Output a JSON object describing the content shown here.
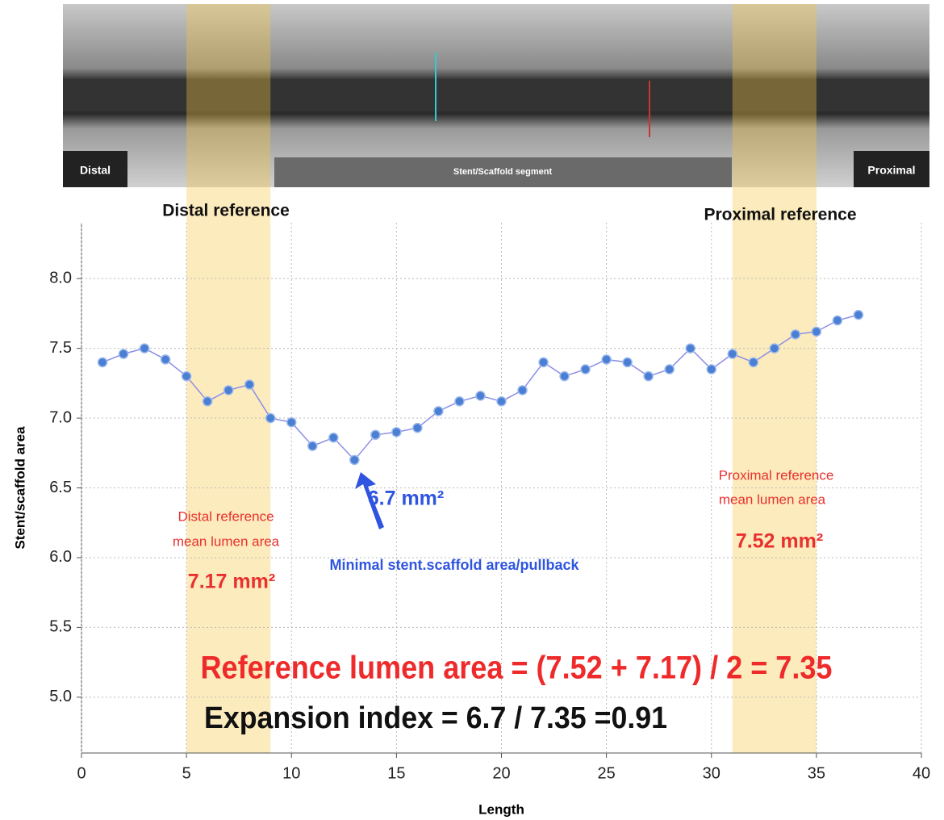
{
  "chart_data": {
    "type": "line",
    "image_labels": [
      "Distal",
      "Stent/Scaffold segment",
      "Proximal"
    ],
    "bands": [
      {
        "label": "Distal reference",
        "range": [
          5,
          9
        ]
      },
      {
        "label": "Proximal reference",
        "range": [
          31,
          35
        ]
      }
    ],
    "x": [
      1,
      2,
      3,
      4,
      5,
      6,
      7,
      8,
      9,
      10,
      11,
      12,
      13,
      14,
      15,
      16,
      17,
      18,
      19,
      20,
      21,
      22,
      23,
      24,
      25,
      26,
      27,
      28,
      29,
      30,
      31,
      32,
      33,
      34,
      35,
      36,
      37
    ],
    "series": [
      {
        "color": "#4a7fd4",
        "values": [
          7.4,
          7.46,
          7.5,
          7.42,
          7.3,
          7.12,
          7.2,
          7.24,
          7.0,
          6.97,
          6.8,
          6.86,
          6.7,
          6.88,
          6.9,
          6.93,
          7.05,
          7.12,
          7.16,
          7.12,
          7.2,
          7.4,
          7.3,
          7.35,
          7.42,
          7.4,
          7.3,
          7.35,
          7.5,
          7.35,
          7.46,
          7.4,
          7.5,
          7.6,
          7.62,
          7.7,
          7.74
        ]
      }
    ],
    "xlabel": "Length",
    "ylabel": "Stent/scaffold area",
    "xlim": [
      0,
      40
    ],
    "xticks": [
      0,
      5,
      10,
      15,
      20,
      25,
      30,
      35,
      40
    ],
    "ylim": [
      4.6,
      8.4
    ],
    "yticks": [
      {
        "value": 5,
        "label": "5.0"
      },
      {
        "value": 5.5,
        "label": "5.5"
      },
      {
        "value": 6,
        "label": "6.0"
      },
      {
        "value": 6.5,
        "label": "6.5"
      },
      {
        "value": 7,
        "label": "7.0"
      },
      {
        "value": 7.5,
        "label": "7.5"
      },
      {
        "value": 8,
        "label": "8.0"
      }
    ],
    "grid": true,
    "annotations": [
      {
        "text": "Distal reference",
        "color": "#e8312f"
      },
      {
        "text": "mean lumen area",
        "color": "#e8312f"
      },
      {
        "text": "7.17 mm²",
        "color": "#e8312f"
      },
      {
        "text": "6.7 mm²",
        "color": "#2f55e0"
      },
      {
        "text": "Minimal stent.scaffold area/pullback",
        "color": "#2f55e0"
      },
      {
        "text": "Proximal reference",
        "color": "#e8312f"
      },
      {
        "text": "mean lumen area",
        "color": "#e8312f"
      },
      {
        "text": "7.52 mm²",
        "color": "#e8312f"
      },
      {
        "text": "Reference lumen area = (7.52 + 7.17) / 2 = 7.35",
        "color": "#ee2a2a"
      },
      {
        "text": "Expansion index = 6.7 / 7.35 =0.91",
        "color": "#111111"
      }
    ]
  }
}
